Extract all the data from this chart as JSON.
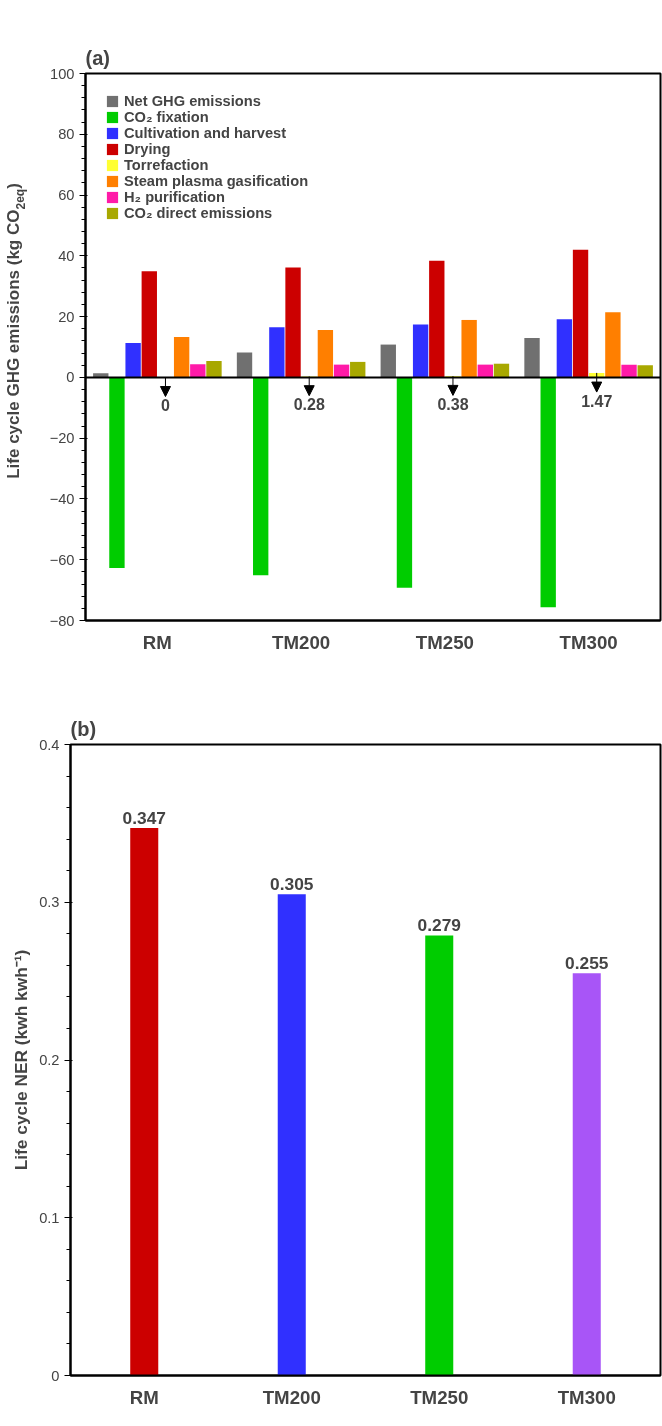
{
  "chart_data": [
    {
      "type": "bar",
      "title": "(a)",
      "ylabel": "Life cycle GHG emissions (kg CO$_{2eq}$)",
      "categories": [
        "RM",
        "TM200",
        "TM250",
        "TM300"
      ],
      "series": [
        {
          "name": "Net GHG emissions",
          "color": "#707070",
          "values": [
            1.4,
            8.2,
            10.8,
            13.0
          ]
        },
        {
          "name": "CO₂ fixation",
          "color": "#00cc00",
          "values": [
            -62.7,
            -65.1,
            -69.2,
            -75.6
          ]
        },
        {
          "name": "Cultivation and harvest",
          "color": "#3030ff",
          "values": [
            11.3,
            16.5,
            17.4,
            19.1
          ]
        },
        {
          "name": "Drying",
          "color": "#cc0000",
          "values": [
            34.9,
            36.2,
            38.4,
            42.0
          ]
        },
        {
          "name": "Torrefaction",
          "color": "#ffff33",
          "values": [
            0,
            0.28,
            0.38,
            1.47
          ],
          "value_labels": [
            "0",
            "0.28",
            "0.38",
            "1.47"
          ]
        },
        {
          "name": "Steam plasma gasification",
          "color": "#ff7f00",
          "values": [
            13.3,
            15.6,
            18.9,
            21.4
          ]
        },
        {
          "name": "H₂ purification",
          "color": "#ff1aa8",
          "values": [
            4.3,
            4.2,
            4.2,
            4.2
          ]
        },
        {
          "name": "CO₂ direct emissions",
          "color": "#a8a800",
          "values": [
            5.4,
            5.1,
            4.5,
            4.0
          ]
        }
      ],
      "ylim": [
        -80,
        100
      ],
      "yticks": [
        -80,
        -60,
        -40,
        -20,
        0,
        20,
        40,
        60,
        80,
        100
      ],
      "ref_lines": [
        {
          "axis": "y",
          "value": 0
        }
      ],
      "legend": "top left",
      "grid": false
    },
    {
      "type": "bar",
      "title": "(b)",
      "ylabel": "Life cycle NER (kwh kwh⁻¹)",
      "categories": [
        "RM",
        "TM200",
        "TM250",
        "TM300"
      ],
      "values": [
        0.347,
        0.305,
        0.279,
        0.255
      ],
      "colors": [
        "#cc0000",
        "#3030ff",
        "#00cc00",
        "#a855f7"
      ],
      "ylim": [
        0,
        0.4
      ],
      "yticks": [
        0,
        0.1,
        0.2,
        0.3,
        0.4
      ],
      "data_labels": true,
      "grid": false
    }
  ]
}
